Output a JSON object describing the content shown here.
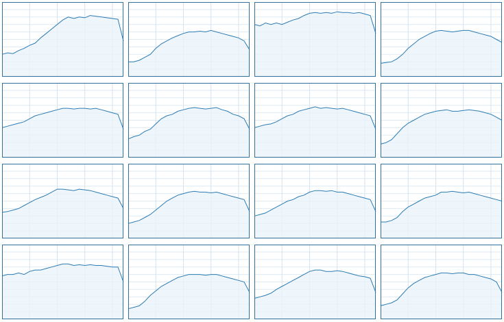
{
  "chart_data": [
    {
      "type": "area",
      "x": [
        0,
        1,
        2,
        3,
        4,
        5,
        6,
        7,
        8,
        9,
        10,
        11,
        12,
        13,
        14,
        15,
        16,
        17,
        18,
        19,
        20,
        21,
        22
      ],
      "values": [
        30,
        32,
        31,
        35,
        38,
        42,
        45,
        52,
        58,
        64,
        70,
        76,
        80,
        78,
        80,
        79,
        82,
        81,
        80,
        79,
        78,
        77,
        48
      ],
      "xlim": [
        0,
        22
      ],
      "ylim": [
        0,
        100
      ],
      "xticks": [
        5,
        10,
        15,
        20
      ],
      "yticks": [
        10,
        20,
        30,
        40,
        50,
        60,
        70,
        80,
        90
      ],
      "grid": true,
      "color": "#2b7bb3"
    },
    {
      "type": "area",
      "x": [
        0,
        1,
        2,
        3,
        4,
        5,
        6,
        7,
        8,
        9,
        10,
        11,
        12,
        13,
        14,
        15,
        16,
        17,
        18,
        19,
        20,
        21,
        22
      ],
      "values": [
        20,
        20,
        22,
        26,
        30,
        38,
        44,
        48,
        52,
        55,
        58,
        60,
        60,
        61,
        60,
        62,
        60,
        58,
        56,
        54,
        52,
        48,
        36
      ],
      "xlim": [
        0,
        22
      ],
      "ylim": [
        0,
        100
      ],
      "xticks": [
        5,
        10,
        15,
        20
      ],
      "yticks": [
        10,
        20,
        30,
        40,
        50,
        60,
        70,
        80,
        90
      ],
      "grid": true,
      "color": "#2b7bb3"
    },
    {
      "type": "area",
      "x": [
        0,
        1,
        2,
        3,
        4,
        5,
        6,
        7,
        8,
        9,
        10,
        11,
        12,
        13,
        14,
        15,
        16,
        17,
        18,
        19,
        20,
        21,
        22
      ],
      "values": [
        70,
        68,
        72,
        70,
        72,
        70,
        73,
        76,
        78,
        82,
        85,
        86,
        85,
        86,
        85,
        87,
        86,
        86,
        85,
        86,
        84,
        82,
        58
      ],
      "xlim": [
        0,
        22
      ],
      "ylim": [
        0,
        100
      ],
      "xticks": [
        5,
        10,
        15,
        20
      ],
      "yticks": [
        10,
        20,
        30,
        40,
        50,
        60,
        70,
        80,
        90
      ],
      "grid": true,
      "color": "#2b7bb3"
    },
    {
      "type": "area",
      "x": [
        0,
        1,
        2,
        3,
        4,
        5,
        6,
        7,
        8,
        9,
        10,
        11,
        12,
        13,
        14,
        15,
        16,
        17,
        18,
        19,
        20,
        21,
        22
      ],
      "values": [
        18,
        19,
        20,
        24,
        30,
        38,
        44,
        50,
        54,
        58,
        61,
        62,
        61,
        60,
        61,
        62,
        62,
        60,
        58,
        56,
        54,
        50,
        46
      ],
      "xlim": [
        0,
        22
      ],
      "ylim": [
        0,
        100
      ],
      "xticks": [
        5,
        10,
        15,
        20
      ],
      "yticks": [
        10,
        20,
        30,
        40,
        50,
        60,
        70,
        80,
        90
      ],
      "grid": true,
      "color": "#2b7bb3"
    },
    {
      "type": "area",
      "x": [
        0,
        1,
        2,
        3,
        4,
        5,
        6,
        7,
        8,
        9,
        10,
        11,
        12,
        13,
        14,
        15,
        16,
        17,
        18,
        19,
        20,
        21,
        22
      ],
      "values": [
        40,
        42,
        44,
        46,
        48,
        52,
        56,
        58,
        60,
        62,
        64,
        66,
        66,
        65,
        66,
        66,
        65,
        66,
        64,
        62,
        60,
        58,
        38
      ],
      "xlim": [
        0,
        22
      ],
      "ylim": [
        0,
        100
      ],
      "xticks": [
        5,
        10,
        15,
        20
      ],
      "yticks": [
        10,
        20,
        30,
        40,
        50,
        60,
        70,
        80,
        90
      ],
      "grid": true,
      "color": "#2b7bb3"
    },
    {
      "type": "area",
      "x": [
        0,
        1,
        2,
        3,
        4,
        5,
        6,
        7,
        8,
        9,
        10,
        11,
        12,
        13,
        14,
        15,
        16,
        17,
        18,
        19,
        20,
        21,
        22
      ],
      "values": [
        25,
        28,
        30,
        35,
        38,
        45,
        52,
        56,
        58,
        62,
        64,
        66,
        67,
        66,
        65,
        66,
        67,
        64,
        62,
        58,
        56,
        52,
        38
      ],
      "xlim": [
        0,
        22
      ],
      "ylim": [
        0,
        100
      ],
      "xticks": [
        5,
        10,
        15,
        20
      ],
      "yticks": [
        10,
        20,
        30,
        40,
        50,
        60,
        70,
        80,
        90
      ],
      "grid": true,
      "color": "#2b7bb3"
    },
    {
      "type": "area",
      "x": [
        0,
        1,
        2,
        3,
        4,
        5,
        6,
        7,
        8,
        9,
        10,
        11,
        12,
        13,
        14,
        15,
        16,
        17,
        18,
        19,
        20,
        21,
        22
      ],
      "values": [
        40,
        42,
        44,
        45,
        48,
        52,
        56,
        58,
        62,
        64,
        66,
        68,
        66,
        67,
        66,
        65,
        66,
        64,
        62,
        60,
        58,
        56,
        38
      ],
      "xlim": [
        0,
        22
      ],
      "ylim": [
        0,
        100
      ],
      "xticks": [
        5,
        10,
        15,
        20
      ],
      "yticks": [
        10,
        20,
        30,
        40,
        50,
        60,
        70,
        80,
        90
      ],
      "grid": true,
      "color": "#2b7bb3"
    },
    {
      "type": "area",
      "x": [
        0,
        1,
        2,
        3,
        4,
        5,
        6,
        7,
        8,
        9,
        10,
        11,
        12,
        13,
        14,
        15,
        16,
        17,
        18,
        19,
        20,
        21,
        22
      ],
      "values": [
        18,
        20,
        24,
        32,
        40,
        46,
        50,
        54,
        58,
        60,
        62,
        63,
        64,
        62,
        62,
        63,
        64,
        63,
        62,
        60,
        58,
        54,
        50
      ],
      "xlim": [
        0,
        22
      ],
      "ylim": [
        0,
        100
      ],
      "xticks": [
        5,
        10,
        15,
        20
      ],
      "yticks": [
        10,
        20,
        30,
        40,
        50,
        60,
        70,
        80,
        90
      ],
      "grid": true,
      "color": "#2b7bb3"
    },
    {
      "type": "area",
      "x": [
        0,
        1,
        2,
        3,
        4,
        5,
        6,
        7,
        8,
        9,
        10,
        11,
        12,
        13,
        14,
        15,
        16,
        17,
        18,
        19,
        20,
        21,
        22
      ],
      "values": [
        35,
        36,
        38,
        40,
        44,
        48,
        52,
        55,
        58,
        62,
        66,
        66,
        65,
        64,
        66,
        65,
        64,
        62,
        60,
        58,
        56,
        54,
        40
      ],
      "xlim": [
        0,
        22
      ],
      "ylim": [
        0,
        100
      ],
      "xticks": [
        5,
        10,
        15,
        20
      ],
      "yticks": [
        10,
        20,
        30,
        40,
        50,
        60,
        70,
        80,
        90
      ],
      "grid": true,
      "color": "#2b7bb3"
    },
    {
      "type": "area",
      "x": [
        0,
        1,
        2,
        3,
        4,
        5,
        6,
        7,
        8,
        9,
        10,
        11,
        12,
        13,
        14,
        15,
        16,
        17,
        18,
        19,
        20,
        21,
        22
      ],
      "values": [
        20,
        22,
        24,
        28,
        32,
        38,
        44,
        50,
        54,
        58,
        60,
        62,
        63,
        62,
        62,
        61,
        62,
        60,
        58,
        56,
        54,
        52,
        36
      ],
      "xlim": [
        0,
        22
      ],
      "ylim": [
        0,
        100
      ],
      "xticks": [
        5,
        10,
        15,
        20
      ],
      "yticks": [
        10,
        20,
        30,
        40,
        50,
        60,
        70,
        80,
        90
      ],
      "grid": true,
      "color": "#2b7bb3"
    },
    {
      "type": "area",
      "x": [
        0,
        1,
        2,
        3,
        4,
        5,
        6,
        7,
        8,
        9,
        10,
        11,
        12,
        13,
        14,
        15,
        16,
        17,
        18,
        19,
        20,
        21,
        22
      ],
      "values": [
        30,
        32,
        34,
        38,
        42,
        46,
        50,
        52,
        56,
        58,
        62,
        64,
        64,
        63,
        64,
        62,
        62,
        60,
        58,
        56,
        54,
        52,
        36
      ],
      "xlim": [
        0,
        22
      ],
      "ylim": [
        0,
        100
      ],
      "xticks": [
        5,
        10,
        15,
        20
      ],
      "yticks": [
        10,
        20,
        30,
        40,
        50,
        60,
        70,
        80,
        90
      ],
      "grid": true,
      "color": "#2b7bb3"
    },
    {
      "type": "area",
      "x": [
        0,
        1,
        2,
        3,
        4,
        5,
        6,
        7,
        8,
        9,
        10,
        11,
        12,
        13,
        14,
        15,
        16,
        17,
        18,
        19,
        20,
        21,
        22
      ],
      "values": [
        22,
        22,
        24,
        28,
        36,
        42,
        46,
        50,
        54,
        56,
        58,
        62,
        62,
        63,
        62,
        61,
        62,
        60,
        58,
        56,
        54,
        52,
        50
      ],
      "xlim": [
        0,
        22
      ],
      "ylim": [
        0,
        100
      ],
      "xticks": [
        5,
        10,
        15,
        20
      ],
      "yticks": [
        10,
        20,
        30,
        40,
        50,
        60,
        70,
        80,
        90
      ],
      "grid": true,
      "color": "#2b7bb3"
    },
    {
      "type": "area",
      "x": [
        0,
        1,
        2,
        3,
        4,
        5,
        6,
        7,
        8,
        9,
        10,
        11,
        12,
        13,
        14,
        15,
        16,
        17,
        18,
        19,
        20,
        21,
        22
      ],
      "values": [
        58,
        60,
        60,
        62,
        60,
        64,
        66,
        66,
        68,
        70,
        72,
        74,
        74,
        72,
        73,
        72,
        73,
        72,
        72,
        71,
        70,
        70,
        50
      ],
      "xlim": [
        0,
        22
      ],
      "ylim": [
        0,
        100
      ],
      "xticks": [
        5,
        10,
        15,
        20
      ],
      "yticks": [
        10,
        20,
        30,
        40,
        50,
        60,
        70,
        80,
        90
      ],
      "grid": true,
      "color": "#2b7bb3"
    },
    {
      "type": "area",
      "x": [
        0,
        1,
        2,
        3,
        4,
        5,
        6,
        7,
        8,
        9,
        10,
        11,
        12,
        13,
        14,
        15,
        16,
        17,
        18,
        19,
        20,
        21,
        22
      ],
      "values": [
        14,
        16,
        18,
        24,
        32,
        38,
        44,
        48,
        52,
        56,
        58,
        60,
        60,
        60,
        59,
        60,
        60,
        58,
        56,
        54,
        52,
        50,
        36
      ],
      "xlim": [
        0,
        22
      ],
      "ylim": [
        0,
        100
      ],
      "xticks": [
        5,
        10,
        15,
        20
      ],
      "yticks": [
        10,
        20,
        30,
        40,
        50,
        60,
        70,
        80,
        90
      ],
      "grid": true,
      "color": "#2b7bb3"
    },
    {
      "type": "area",
      "x": [
        0,
        1,
        2,
        3,
        4,
        5,
        6,
        7,
        8,
        9,
        10,
        11,
        12,
        13,
        14,
        15,
        16,
        17,
        18,
        19,
        20,
        21,
        22
      ],
      "values": [
        28,
        30,
        32,
        35,
        40,
        44,
        48,
        52,
        56,
        60,
        64,
        66,
        66,
        64,
        64,
        65,
        64,
        62,
        60,
        58,
        57,
        55,
        36
      ],
      "xlim": [
        0,
        22
      ],
      "ylim": [
        0,
        100
      ],
      "xticks": [
        5,
        10,
        15,
        20
      ],
      "yticks": [
        10,
        20,
        30,
        40,
        50,
        60,
        70,
        80,
        90
      ],
      "grid": true,
      "color": "#2b7bb3"
    },
    {
      "type": "area",
      "x": [
        0,
        1,
        2,
        3,
        4,
        5,
        6,
        7,
        8,
        9,
        10,
        11,
        12,
        13,
        14,
        15,
        16,
        17,
        18,
        19,
        20,
        21,
        22
      ],
      "values": [
        18,
        20,
        22,
        26,
        34,
        42,
        48,
        52,
        56,
        58,
        60,
        62,
        62,
        61,
        62,
        62,
        60,
        60,
        58,
        56,
        54,
        50,
        36
      ],
      "xlim": [
        0,
        22
      ],
      "ylim": [
        0,
        100
      ],
      "xticks": [
        5,
        10,
        15,
        20
      ],
      "yticks": [
        10,
        20,
        30,
        40,
        50,
        60,
        70,
        80,
        90
      ],
      "grid": true,
      "color": "#2b7bb3"
    }
  ]
}
